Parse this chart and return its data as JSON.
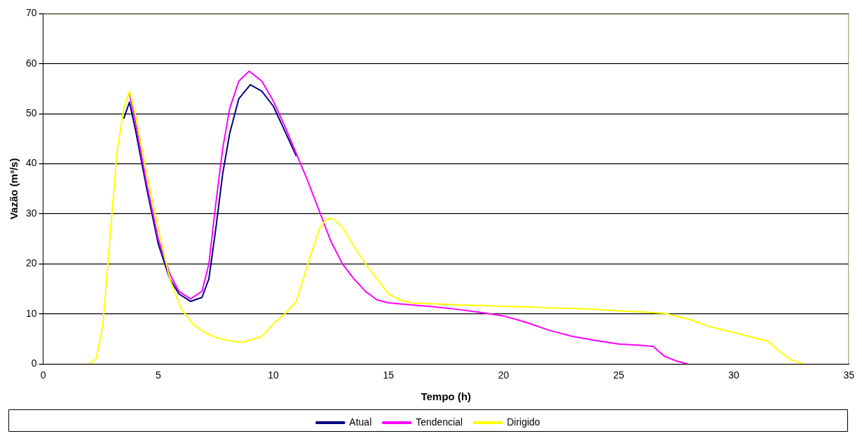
{
  "chart_data": {
    "type": "line",
    "xlabel": "Tempo (h)",
    "ylabel": "Vazão (m³/s)",
    "xlim": [
      0,
      35
    ],
    "xticks": [
      0,
      5,
      10,
      15,
      20,
      25,
      30,
      35
    ],
    "ylim": [
      0,
      70
    ],
    "yticks": [
      0,
      10,
      20,
      30,
      40,
      50,
      60,
      70
    ],
    "grid": "y",
    "legend": "bottom",
    "marker": "none",
    "line_style": "solid",
    "series": [
      {
        "name": "Atual",
        "color": "#000080",
        "x": [
          3.5,
          3.75,
          4.0,
          4.5,
          5.0,
          5.5,
          5.9,
          6.4,
          6.9,
          7.2,
          7.5,
          7.8,
          8.1,
          8.5,
          9.0,
          9.5,
          10,
          10.5,
          11
        ],
        "values": [
          49,
          52.3,
          47,
          35,
          24,
          17,
          14,
          12.5,
          13.3,
          17,
          27,
          38,
          46,
          53,
          55.8,
          54.5,
          51.5,
          46.5,
          41.5
        ]
      },
      {
        "name": "Tendencial",
        "color": "#ff00ff",
        "x": [
          3.75,
          4.0,
          4.5,
          5.0,
          5.5,
          5.9,
          6.4,
          6.9,
          7.2,
          7.5,
          7.8,
          8.1,
          8.5,
          8.95,
          9.5,
          10,
          10.5,
          11,
          11.5,
          12,
          12.5,
          13,
          13.5,
          14,
          14.5,
          15,
          16,
          17,
          18,
          19,
          20,
          21,
          22,
          23,
          24,
          25,
          26,
          26.5,
          27,
          27.5,
          28
        ],
        "values": [
          54,
          48.5,
          36,
          25,
          18,
          14.5,
          13,
          14.5,
          20,
          32,
          43,
          51,
          56.5,
          58.5,
          56.5,
          52.5,
          47.5,
          42,
          36.5,
          30.5,
          24.5,
          20,
          17,
          14.5,
          12.8,
          12.2,
          11.8,
          11.4,
          10.9,
          10.3,
          9.6,
          8.3,
          6.7,
          5.5,
          4.7,
          4,
          3.7,
          3.5,
          1.5,
          0.6,
          0
        ]
      },
      {
        "name": "Dirigido",
        "color": "#ffff00",
        "x": [
          2.0,
          2.3,
          2.6,
          2.9,
          3.2,
          3.5,
          3.75,
          4.0,
          4.5,
          5.0,
          5.5,
          6.0,
          6.5,
          7,
          7.5,
          8,
          8.5,
          8.7,
          9,
          9.5,
          10,
          10.5,
          11,
          11.5,
          12,
          12.3,
          12.6,
          13,
          13.5,
          14,
          14.5,
          15,
          15.5,
          16,
          17,
          18,
          19,
          20,
          21,
          22,
          23,
          24,
          25,
          26,
          27,
          28,
          29,
          30,
          31,
          31.5,
          32,
          32.5,
          33
        ],
        "values": [
          0,
          1,
          8,
          25,
          42,
          51,
          54.5,
          50,
          38,
          27,
          17,
          11,
          8,
          6.3,
          5.3,
          4.7,
          4.4,
          4.3,
          4.8,
          5.5,
          8,
          10,
          12.5,
          20,
          27,
          29,
          29,
          27.3,
          23.5,
          20,
          17,
          14,
          12.8,
          12.2,
          12,
          11.8,
          11.7,
          11.5,
          11.4,
          11.2,
          11.1,
          10.9,
          10.6,
          10.4,
          10.1,
          9,
          7.4,
          6.3,
          5.1,
          4.5,
          2.5,
          0.8,
          0
        ]
      }
    ]
  }
}
